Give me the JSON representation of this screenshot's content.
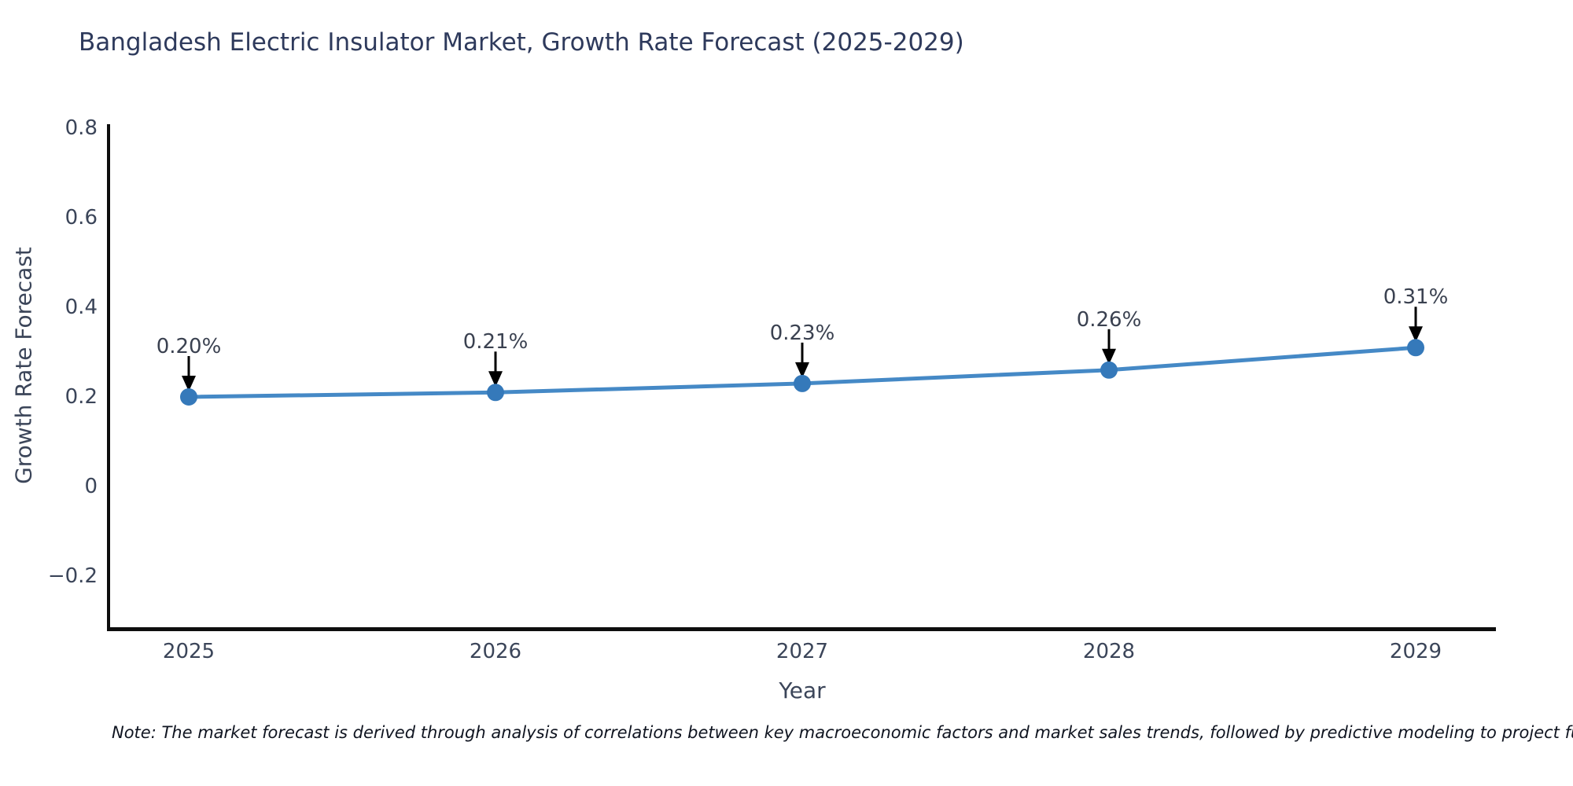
{
  "title": "Bangladesh Electric Insulator Market, Growth Rate Forecast (2025-2029)",
  "note": "Note: The market forecast is derived through analysis of correlations between key macroeconomic factors and market sales trends, followed by predictive modeling to project future sal",
  "chart_data": {
    "type": "line",
    "title": "Bangladesh Electric Insulator Market, Growth Rate Forecast (2025-2029)",
    "xlabel": "Year",
    "ylabel": "Growth Rate Forecast",
    "x": [
      2025,
      2026,
      2027,
      2028,
      2029
    ],
    "xtick_labels": [
      "2025",
      "2026",
      "2027",
      "2028",
      "2029"
    ],
    "series": [
      {
        "name": "Growth Rate Forecast",
        "values": [
          0.2,
          0.21,
          0.23,
          0.26,
          0.31
        ]
      }
    ],
    "point_labels": [
      "0.20%",
      "0.21%",
      "0.23%",
      "0.26%",
      "0.31%"
    ],
    "yticks": [
      0.8,
      0.6,
      0.4,
      0.2,
      0,
      -0.2
    ],
    "ytick_labels": [
      "0.8",
      "0.6",
      "0.4",
      "0.2",
      "0",
      "−0.2"
    ],
    "ylim": [
      -0.32,
      0.81
    ],
    "xlim": [
      2024.74,
      2029.26
    ],
    "grid": false,
    "legend_position": "none",
    "colors": {
      "line": "#4589c6",
      "marker": "#3579ba",
      "annotation_arrow": "#000000",
      "axis_spine": "#0d0d0d",
      "title_text": "#2e3a5c",
      "tick_text": "#3b4559"
    }
  }
}
